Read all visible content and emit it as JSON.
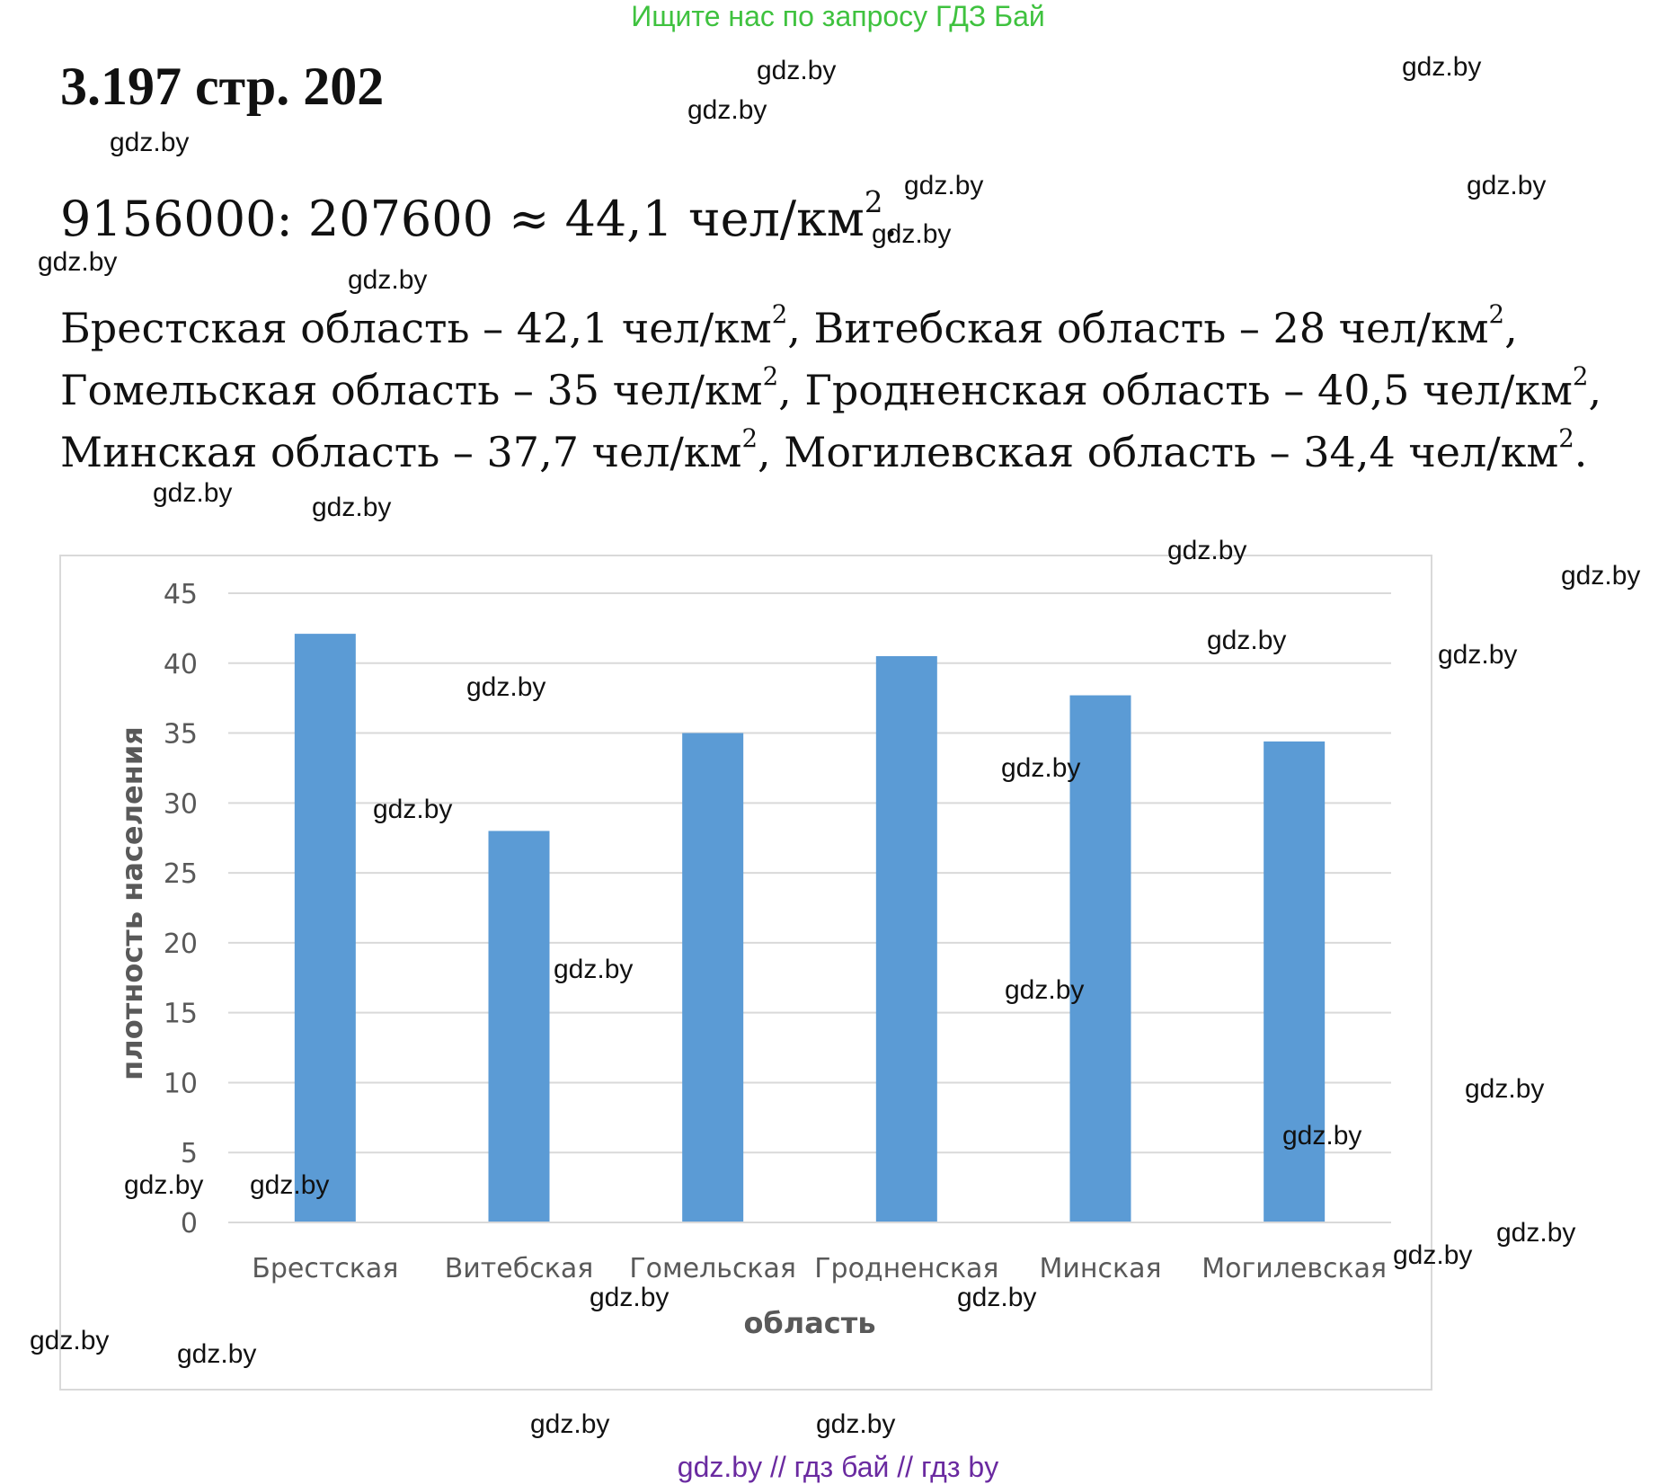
{
  "header": {
    "banner": "Ищите нас по запросу ГДЗ Бай",
    "task_title": "3.197 стр. 202"
  },
  "formula": {
    "expression": "9156000: 207600 ≈ 44,1 чел/км",
    "exponent": "2",
    "suffix": "."
  },
  "regions_text": [
    {
      "text": "Брестская область –  42,1 чел/км",
      "sup": "2",
      "sep": ","
    },
    {
      "text": "Витебская область –  28 чел/км",
      "sup": "2",
      "sep": ","
    },
    {
      "text": "Гомельская область –  35  чел/км",
      "sup": "2",
      "sep": ","
    },
    {
      "text": "Гродненская область –  40,5 чел/км",
      "sup": "2",
      "sep": ","
    },
    {
      "text": "Минская область –  37,7 чел/км",
      "sup": "2",
      "sep": ","
    },
    {
      "text": "Могилевская область –  34,4 чел/км",
      "sup": "2",
      "sep": "."
    }
  ],
  "chart_data": {
    "type": "bar",
    "categories": [
      "Брестская",
      "Витебская",
      "Гомельская",
      "Гродненская",
      "Минская",
      "Могилевская"
    ],
    "values": [
      42.1,
      28,
      35,
      40.5,
      37.7,
      34.4
    ],
    "xlabel": "область",
    "ylabel": "плотность населения",
    "ylim": [
      0,
      45
    ],
    "yticks": [
      "0",
      "5",
      "10",
      "15",
      "20",
      "25",
      "30",
      "35",
      "40",
      "45"
    ],
    "grid": true,
    "bar_color": "#5b9bd5",
    "grid_color": "#d9d9d9",
    "label_color": "#595959"
  },
  "watermark_text": "gdz.by",
  "footer": "gdz.by  //  гдз бай  //  гдз by"
}
